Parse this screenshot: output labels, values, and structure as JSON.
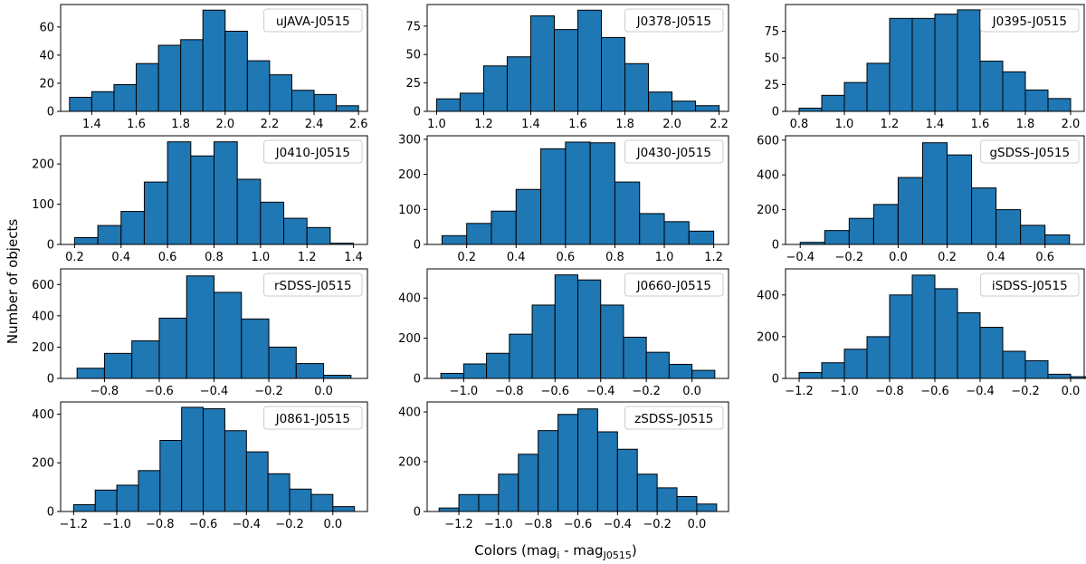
{
  "figure": {
    "ylabel": "Number of objects",
    "xlabel_prefix": "Colors (mag",
    "xlabel_sub1": "i",
    "xlabel_mid": " - mag",
    "xlabel_sub2": "J0515",
    "xlabel_suffix": ")",
    "bar_color": "#1f77b4",
    "edge_color": "#000000"
  },
  "chart_data": [
    {
      "type": "bar",
      "title": "uJAVA-J0515",
      "bin_start": 1.3,
      "bin_width": 0.1,
      "values": [
        10,
        14,
        19,
        34,
        47,
        51,
        72,
        57,
        36,
        26,
        15,
        12,
        4
      ],
      "xlim": [
        1.26,
        2.64
      ],
      "ylim": [
        0,
        76
      ],
      "xticks": [
        1.4,
        1.6,
        1.8,
        2.0,
        2.2,
        2.4,
        2.6
      ],
      "xtick_labels": [
        "1.4",
        "1.6",
        "1.8",
        "2.0",
        "2.2",
        "2.4",
        "2.6"
      ],
      "yticks": [
        0,
        20,
        40,
        60
      ],
      "ytick_labels": [
        "0",
        "20",
        "40",
        "60"
      ]
    },
    {
      "type": "bar",
      "title": "J0378-J0515",
      "bin_start": 1.0,
      "bin_width": 0.1,
      "values": [
        11,
        16,
        40,
        48,
        84,
        72,
        89,
        65,
        42,
        17,
        9,
        5
      ],
      "xlim": [
        0.96,
        2.24
      ],
      "ylim": [
        0,
        94
      ],
      "xticks": [
        1.0,
        1.2,
        1.4,
        1.6,
        1.8,
        2.0,
        2.2
      ],
      "xtick_labels": [
        "1.0",
        "1.2",
        "1.4",
        "1.6",
        "1.8",
        "2.0",
        "2.2"
      ],
      "yticks": [
        0,
        25,
        50,
        75
      ],
      "ytick_labels": [
        "0",
        "25",
        "50",
        "75"
      ]
    },
    {
      "type": "bar",
      "title": "J0395-J0515",
      "bin_start": 0.8,
      "bin_width": 0.1,
      "values": [
        3,
        15,
        27,
        45,
        87,
        87,
        91,
        95,
        47,
        37,
        20,
        12
      ],
      "xlim": [
        0.74,
        2.06
      ],
      "ylim": [
        0,
        100
      ],
      "xticks": [
        0.8,
        1.0,
        1.2,
        1.4,
        1.6,
        1.8,
        2.0
      ],
      "xtick_labels": [
        "0.8",
        "1.0",
        "1.2",
        "1.4",
        "1.6",
        "1.8",
        "2.0"
      ],
      "yticks": [
        0,
        25,
        50,
        75
      ],
      "ytick_labels": [
        "0",
        "25",
        "50",
        "75"
      ]
    },
    {
      "type": "bar",
      "title": "J0410-J0515",
      "bin_start": 0.2,
      "bin_width": 0.1,
      "values": [
        17,
        47,
        82,
        155,
        255,
        220,
        255,
        162,
        105,
        65,
        42,
        3
      ],
      "xlim": [
        0.14,
        1.46
      ],
      "ylim": [
        0,
        270
      ],
      "xticks": [
        0.2,
        0.4,
        0.6,
        0.8,
        1.0,
        1.2,
        1.4
      ],
      "xtick_labels": [
        "0.2",
        "0.4",
        "0.6",
        "0.8",
        "1.0",
        "1.2",
        "1.4"
      ],
      "yticks": [
        0,
        100,
        200
      ],
      "ytick_labels": [
        "0",
        "100",
        "200"
      ]
    },
    {
      "type": "bar",
      "title": "J0430-J0515",
      "bin_start": 0.1,
      "bin_width": 0.1,
      "values": [
        25,
        60,
        95,
        157,
        273,
        292,
        290,
        178,
        88,
        65,
        38
      ],
      "xlim": [
        0.04,
        1.26
      ],
      "ylim": [
        0,
        310
      ],
      "xticks": [
        0.2,
        0.4,
        0.6,
        0.8,
        1.0,
        1.2
      ],
      "xtick_labels": [
        "0.2",
        "0.4",
        "0.6",
        "0.8",
        "1.0",
        "1.2"
      ],
      "yticks": [
        0,
        100,
        200,
        300
      ],
      "ytick_labels": [
        "0",
        "100",
        "200",
        "300"
      ]
    },
    {
      "type": "bar",
      "title": "gSDSS-J0515",
      "bin_start": -0.4,
      "bin_width": 0.1,
      "values": [
        12,
        80,
        150,
        230,
        385,
        585,
        515,
        325,
        200,
        110,
        55
      ],
      "xlim": [
        -0.46,
        0.76
      ],
      "ylim": [
        0,
        625
      ],
      "xticks": [
        -0.4,
        -0.2,
        0.0,
        0.2,
        0.4,
        0.6
      ],
      "xtick_labels": [
        "−0.4",
        "−0.2",
        "0.0",
        "0.2",
        "0.4",
        "0.6"
      ],
      "yticks": [
        0,
        200,
        400,
        600
      ],
      "ytick_labels": [
        "0",
        "200",
        "400",
        "600"
      ]
    },
    {
      "type": "bar",
      "title": "rSDSS-J0515",
      "bin_start": -0.9,
      "bin_width": 0.1,
      "values": [
        65,
        160,
        240,
        385,
        655,
        550,
        380,
        200,
        95,
        20
      ],
      "xlim": [
        -0.96,
        0.16
      ],
      "ylim": [
        0,
        700
      ],
      "xticks": [
        -0.8,
        -0.6,
        -0.4,
        -0.2,
        0.0
      ],
      "xtick_labels": [
        "−0.8",
        "−0.6",
        "−0.4",
        "−0.2",
        "0.0"
      ],
      "yticks": [
        0,
        200,
        400,
        600
      ],
      "ytick_labels": [
        "0",
        "200",
        "400",
        "600"
      ]
    },
    {
      "type": "bar",
      "title": "J0660-J0515",
      "bin_start": -1.1,
      "bin_width": 0.1,
      "values": [
        25,
        72,
        125,
        220,
        365,
        515,
        490,
        365,
        205,
        130,
        70,
        40
      ],
      "xlim": [
        -1.16,
        0.16
      ],
      "ylim": [
        0,
        545
      ],
      "xticks": [
        -1.0,
        -0.8,
        -0.6,
        -0.4,
        -0.2,
        0.0
      ],
      "xtick_labels": [
        "−1.0",
        "−0.8",
        "−0.6",
        "−0.4",
        "−0.2",
        "0.0"
      ],
      "yticks": [
        0,
        200,
        400
      ],
      "ytick_labels": [
        "0",
        "200",
        "400"
      ]
    },
    {
      "type": "bar",
      "title": "iSDSS-J0515",
      "bin_start": -1.2,
      "bin_width": 0.1,
      "values": [
        28,
        75,
        140,
        200,
        400,
        495,
        430,
        315,
        245,
        130,
        85,
        20,
        8
      ],
      "xlim": [
        -1.26,
        0.06
      ],
      "ylim": [
        0,
        525
      ],
      "xticks": [
        -1.2,
        -1.0,
        -0.8,
        -0.6,
        -0.4,
        -0.2,
        0.0
      ],
      "xtick_labels": [
        "−1.2",
        "−1.0",
        "−0.8",
        "−0.6",
        "−0.4",
        "−0.2",
        "0.0"
      ],
      "yticks": [
        0,
        200,
        400
      ],
      "ytick_labels": [
        "0",
        "200",
        "400"
      ]
    },
    {
      "type": "bar",
      "title": "J0861-J0515",
      "bin_start": -1.2,
      "bin_width": 0.1,
      "values": [
        28,
        88,
        108,
        168,
        292,
        428,
        422,
        332,
        245,
        155,
        92,
        70,
        20
      ],
      "xlim": [
        -1.26,
        0.16
      ],
      "ylim": [
        0,
        450
      ],
      "xticks": [
        -1.2,
        -1.0,
        -0.8,
        -0.6,
        -0.4,
        -0.2,
        0.0
      ],
      "xtick_labels": [
        "−1.2",
        "−1.0",
        "−0.8",
        "−0.6",
        "−0.4",
        "−0.2",
        "0.0"
      ],
      "yticks": [
        0,
        200,
        400
      ],
      "ytick_labels": [
        "0",
        "200",
        "400"
      ]
    },
    {
      "type": "bar",
      "title": "zSDSS-J0515",
      "bin_start": -1.3,
      "bin_width": 0.1,
      "values": [
        14,
        68,
        68,
        150,
        230,
        325,
        390,
        412,
        320,
        250,
        150,
        95,
        60,
        30
      ],
      "xlim": [
        -1.36,
        0.16
      ],
      "ylim": [
        0,
        440
      ],
      "xticks": [
        -1.2,
        -1.0,
        -0.8,
        -0.6,
        -0.4,
        -0.2,
        0.0
      ],
      "xtick_labels": [
        "−1.2",
        "−1.0",
        "−0.8",
        "−0.6",
        "−0.4",
        "−0.2",
        "0.0"
      ],
      "yticks": [
        0,
        200,
        400
      ],
      "ytick_labels": [
        "0",
        "200",
        "400"
      ]
    }
  ]
}
